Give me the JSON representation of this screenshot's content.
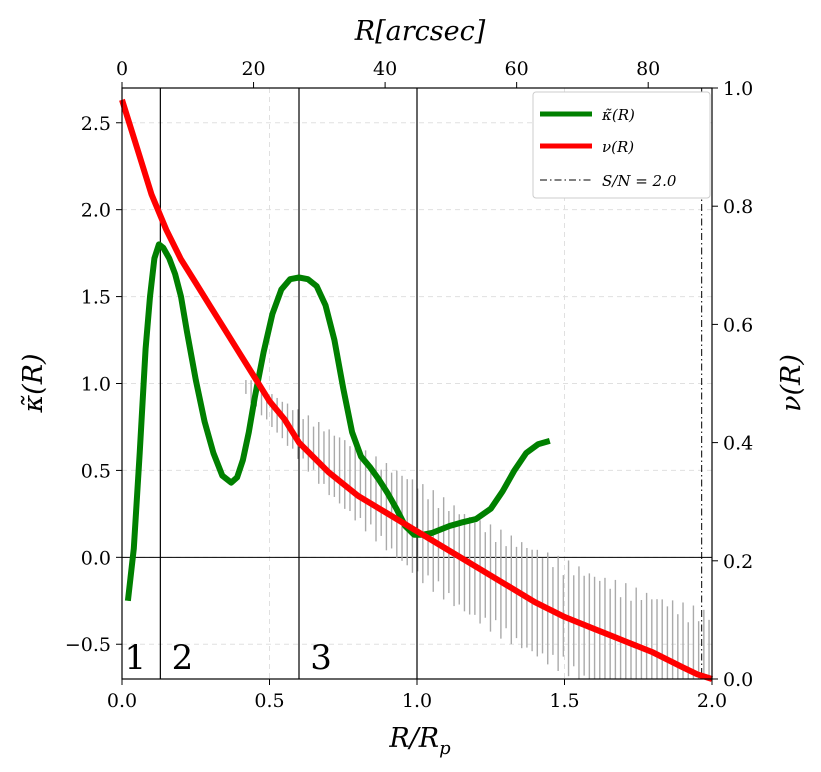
{
  "chart_data": {
    "type": "line",
    "xlabel": "R/R_p",
    "xlabel_parts": {
      "main": "R/R",
      "sub": "p"
    },
    "x2label": "R[arcsec]",
    "ylabel": "κ̃(R)",
    "y2label": "ν(R)",
    "xlim": [
      0,
      2.0
    ],
    "ylim": [
      -0.7,
      2.7
    ],
    "x2lim": [
      0,
      89.7
    ],
    "y2lim": [
      0,
      1.0
    ],
    "x_ticks": [
      0.0,
      0.5,
      1.0,
      1.5,
      2.0
    ],
    "x_tick_labels": [
      "0.0",
      "0.5",
      "1.0",
      "1.5",
      "2.0"
    ],
    "y_ticks": [
      -0.5,
      0.0,
      0.5,
      1.0,
      1.5,
      2.0,
      2.5
    ],
    "y_tick_labels": [
      "−0.5",
      "0.0",
      "0.5",
      "1.0",
      "1.5",
      "2.0",
      "2.5"
    ],
    "x2_ticks": [
      0,
      20,
      40,
      60,
      80
    ],
    "x2_tick_labels": [
      "0",
      "20",
      "40",
      "60",
      "80"
    ],
    "y2_ticks": [
      0.0,
      0.2,
      0.4,
      0.6,
      0.8,
      1.0
    ],
    "y2_tick_labels": [
      "0.0",
      "0.2",
      "0.4",
      "0.6",
      "0.8",
      "1.0"
    ],
    "grid": true,
    "legend_position": "top-right",
    "series": [
      {
        "name": "κ̃(R)",
        "color": "#008000",
        "axis": "left",
        "x": [
          0.02,
          0.04,
          0.06,
          0.08,
          0.095,
          0.11,
          0.125,
          0.14,
          0.16,
          0.18,
          0.2,
          0.22,
          0.25,
          0.28,
          0.31,
          0.34,
          0.37,
          0.39,
          0.41,
          0.43,
          0.45,
          0.48,
          0.51,
          0.54,
          0.57,
          0.6,
          0.63,
          0.66,
          0.69,
          0.72,
          0.75,
          0.78,
          0.81,
          0.84,
          0.87,
          0.9,
          0.93,
          0.96,
          0.99,
          1.02,
          1.05,
          1.08,
          1.11,
          1.15,
          1.2,
          1.25,
          1.29,
          1.33,
          1.37,
          1.41,
          1.45
        ],
        "y": [
          -0.25,
          0.05,
          0.6,
          1.2,
          1.5,
          1.72,
          1.8,
          1.78,
          1.72,
          1.63,
          1.5,
          1.3,
          1.02,
          0.78,
          0.6,
          0.47,
          0.43,
          0.46,
          0.56,
          0.72,
          0.92,
          1.18,
          1.4,
          1.54,
          1.6,
          1.61,
          1.6,
          1.56,
          1.45,
          1.25,
          0.97,
          0.72,
          0.58,
          0.52,
          0.45,
          0.37,
          0.28,
          0.18,
          0.13,
          0.13,
          0.14,
          0.16,
          0.18,
          0.2,
          0.22,
          0.28,
          0.38,
          0.5,
          0.6,
          0.65,
          0.67
        ]
      },
      {
        "name": "ν(R)",
        "color": "#ff0000",
        "axis": "right",
        "x": [
          0.0,
          0.05,
          0.1,
          0.15,
          0.2,
          0.25,
          0.3,
          0.35,
          0.4,
          0.45,
          0.5,
          0.55,
          0.6,
          0.7,
          0.8,
          0.9,
          1.0,
          1.1,
          1.2,
          1.3,
          1.4,
          1.5,
          1.6,
          1.7,
          1.8,
          1.9,
          1.95,
          2.0
        ],
        "y": [
          0.98,
          0.9,
          0.82,
          0.76,
          0.71,
          0.67,
          0.63,
          0.59,
          0.55,
          0.51,
          0.47,
          0.44,
          0.4,
          0.35,
          0.31,
          0.28,
          0.25,
          0.22,
          0.19,
          0.16,
          0.13,
          0.105,
          0.085,
          0.065,
          0.045,
          0.02,
          0.008,
          0.0
        ]
      }
    ],
    "error_band": {
      "color": "#aaaaaa",
      "axis": "left",
      "x_range": [
        0.42,
        1.99
      ],
      "count": 90,
      "center_knots": {
        "x": [
          0.42,
          0.55,
          0.7,
          0.85,
          1.0,
          1.15,
          1.3,
          1.45,
          1.6,
          1.75,
          1.9,
          1.99
        ],
        "y": [
          0.98,
          0.78,
          0.55,
          0.35,
          0.16,
          -0.02,
          -0.17,
          -0.3,
          -0.42,
          -0.52,
          -0.61,
          -0.66
        ]
      },
      "half_width_knots": {
        "x": [
          0.42,
          0.7,
          1.0,
          1.5,
          1.99
        ],
        "y": [
          0.05,
          0.17,
          0.25,
          0.29,
          0.31
        ]
      }
    },
    "vertical_lines": [
      {
        "x": 0.13,
        "label": "1",
        "label_x": 0.045
      },
      {
        "x": 0.6,
        "label": "2",
        "label_x": 0.205
      },
      {
        "x": 1.0,
        "label": "3",
        "label_x": 0.675
      }
    ],
    "sn_line": {
      "x": 1.965,
      "label_prefix": "S/N",
      "label_value": "= 2.0"
    },
    "legend": [
      {
        "label": "κ̃(R)",
        "color": "#008000",
        "style": "solid"
      },
      {
        "label": "ν(R)",
        "color": "#ff0000",
        "style": "solid"
      },
      {
        "label": "S/N = 2.0",
        "color": "#000000",
        "style": "dashdot"
      }
    ]
  }
}
